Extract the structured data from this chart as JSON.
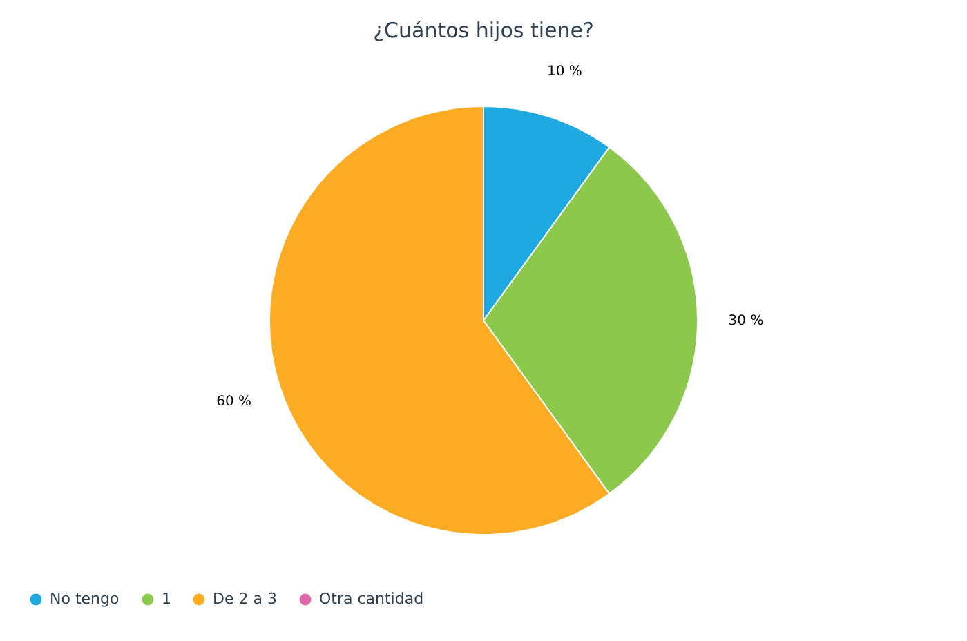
{
  "chart_data": {
    "type": "pie",
    "title": "¿Cuántos hijos tiene?",
    "categories": [
      "No tengo",
      "1",
      "De 2 a 3",
      "Otra cantidad"
    ],
    "values": [
      10,
      30,
      60,
      0
    ],
    "colors": [
      "#1eaae1",
      "#8cc84b",
      "#fcab24",
      "#e066aa"
    ],
    "value_labels": [
      "10 %",
      "30 %",
      "60 %",
      null
    ],
    "legend": "bottom left"
  }
}
